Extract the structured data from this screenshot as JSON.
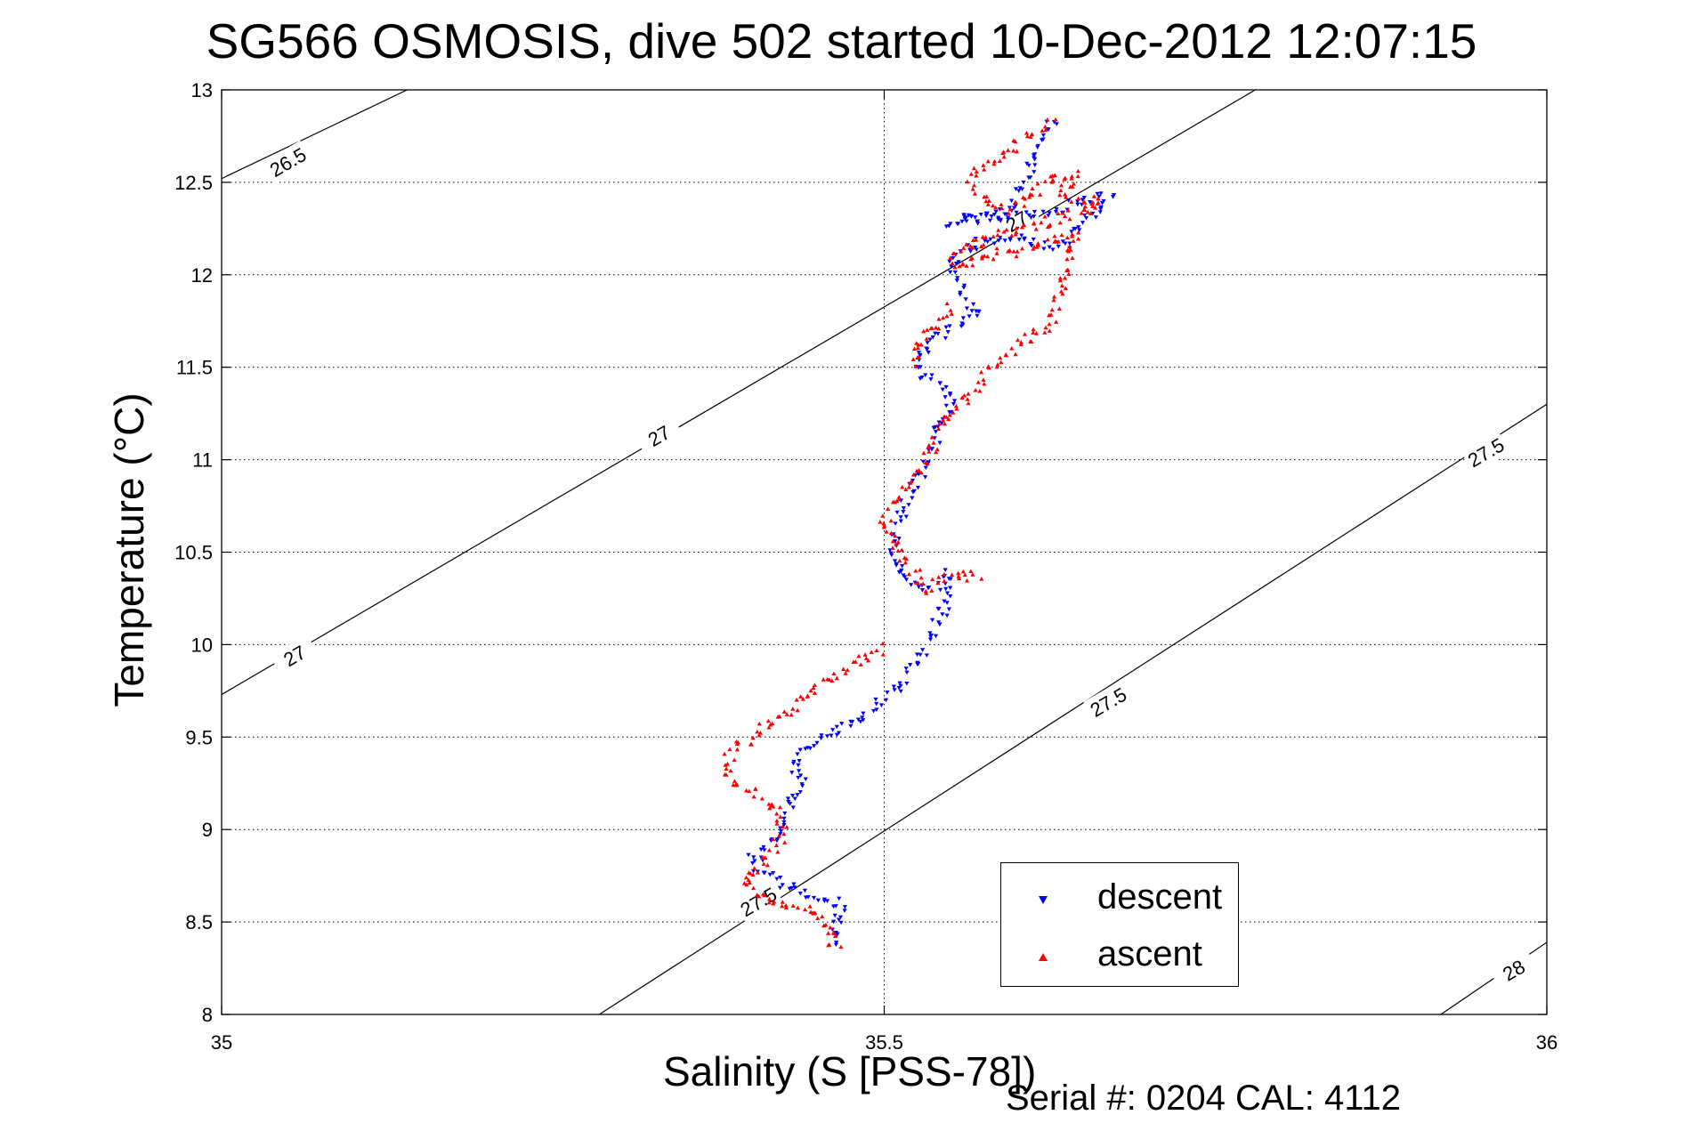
{
  "title": "SG566 OSMOSIS, dive 502 started 10-Dec-2012 12:07:15",
  "footer": "Serial #: 0204  CAL: 4112",
  "chart_data": {
    "type": "scatter",
    "xlabel": "Salinity (S [PSS-78])",
    "ylabel": "Temperature (°C)",
    "xlim": [
      35,
      36
    ],
    "ylim": [
      8,
      13
    ],
    "xticks": [
      "35",
      "35.5",
      "36"
    ],
    "yticks": [
      "8",
      "8.5",
      "9",
      "9.5",
      "10",
      "10.5",
      "11",
      "11.5",
      "12",
      "12.5",
      "13"
    ],
    "grid": "dotted",
    "legend": "bottom-right",
    "colors": {
      "descent": "#0000ff",
      "ascent": "#ff0000"
    },
    "isopycnal_labels": [
      {
        "value": "26.5",
        "x": 35.05,
        "y": 12.61
      },
      {
        "value": "27",
        "x": 35.33,
        "y": 11.13
      },
      {
        "value": "27",
        "x": 35.055,
        "y": 9.94
      },
      {
        "value": "27",
        "x": 35.6,
        "y": 12.29
      },
      {
        "value": "27.5",
        "x": 35.954,
        "y": 11.04
      },
      {
        "value": "27.5",
        "x": 35.669,
        "y": 9.69
      },
      {
        "value": "27.5",
        "x": 35.405,
        "y": 8.61
      },
      {
        "value": "28",
        "x": 35.975,
        "y": 8.24
      }
    ],
    "isopycnals": [
      {
        "value": 26.5,
        "points": [
          [
            35.0,
            12.52
          ],
          [
            35.14,
            13.0
          ]
        ]
      },
      {
        "value": 27.0,
        "points": [
          [
            35.0,
            9.73
          ],
          [
            35.78,
            13.0
          ]
        ]
      },
      {
        "value": 27.5,
        "points": [
          [
            35.285,
            8.0
          ],
          [
            36.0,
            11.3
          ]
        ]
      },
      {
        "value": 28.0,
        "points": [
          [
            35.92,
            8.0
          ],
          [
            36.0,
            8.39
          ]
        ]
      }
    ],
    "series": [
      {
        "name": "descent",
        "color": "#0000ff",
        "path": [
          [
            35.627,
            12.84
          ],
          [
            35.62,
            12.72
          ],
          [
            35.612,
            12.6
          ],
          [
            35.605,
            12.48
          ],
          [
            35.595,
            12.38
          ],
          [
            35.585,
            12.32
          ],
          [
            35.56,
            12.3
          ],
          [
            35.55,
            12.29
          ],
          [
            35.6,
            12.32
          ],
          [
            35.63,
            12.35
          ],
          [
            35.65,
            12.4
          ],
          [
            35.67,
            12.43
          ],
          [
            35.665,
            12.36
          ],
          [
            35.655,
            12.3
          ],
          [
            35.645,
            12.25
          ],
          [
            35.64,
            12.18
          ],
          [
            35.63,
            12.15
          ],
          [
            35.6,
            12.2
          ],
          [
            35.57,
            12.17
          ],
          [
            35.55,
            12.05
          ],
          [
            35.558,
            11.92
          ],
          [
            35.57,
            11.8
          ],
          [
            35.555,
            11.72
          ],
          [
            35.54,
            11.65
          ],
          [
            35.525,
            11.55
          ],
          [
            35.53,
            11.45
          ],
          [
            35.545,
            11.38
          ],
          [
            35.55,
            11.3
          ],
          [
            35.54,
            11.15
          ],
          [
            35.535,
            11.05
          ],
          [
            35.525,
            10.9
          ],
          [
            35.515,
            10.75
          ],
          [
            35.508,
            10.6
          ],
          [
            35.505,
            10.48
          ],
          [
            35.51,
            10.4
          ],
          [
            35.52,
            10.33
          ],
          [
            35.53,
            10.29
          ],
          [
            35.54,
            10.32
          ],
          [
            35.55,
            10.38
          ],
          [
            35.545,
            10.2
          ],
          [
            35.538,
            10.08
          ],
          [
            35.53,
            9.95
          ],
          [
            35.52,
            9.85
          ],
          [
            35.51,
            9.75
          ],
          [
            35.49,
            9.65
          ],
          [
            35.47,
            9.55
          ],
          [
            35.45,
            9.48
          ],
          [
            35.44,
            9.42
          ],
          [
            35.43,
            9.38
          ],
          [
            35.435,
            9.32
          ],
          [
            35.44,
            9.25
          ],
          [
            35.43,
            9.15
          ],
          [
            35.425,
            9.05
          ],
          [
            35.418,
            8.95
          ],
          [
            35.41,
            8.88
          ],
          [
            35.4,
            8.84
          ],
          [
            35.405,
            8.78
          ],
          [
            35.42,
            8.72
          ],
          [
            35.435,
            8.68
          ],
          [
            35.45,
            8.64
          ],
          [
            35.465,
            8.6
          ],
          [
            35.47,
            8.55
          ],
          [
            35.465,
            8.5
          ],
          [
            35.46,
            8.44
          ],
          [
            35.465,
            8.38
          ]
        ]
      },
      {
        "name": "ascent",
        "color": "#ff0000",
        "path": [
          [
            35.626,
            12.83
          ],
          [
            35.615,
            12.76
          ],
          [
            35.6,
            12.7
          ],
          [
            35.59,
            12.64
          ],
          [
            35.575,
            12.58
          ],
          [
            35.565,
            12.52
          ],
          [
            35.57,
            12.45
          ],
          [
            35.58,
            12.38
          ],
          [
            35.59,
            12.34
          ],
          [
            35.6,
            12.38
          ],
          [
            35.615,
            12.45
          ],
          [
            35.63,
            12.52
          ],
          [
            35.645,
            12.55
          ],
          [
            35.64,
            12.5
          ],
          [
            35.635,
            12.43
          ],
          [
            35.65,
            12.39
          ],
          [
            35.66,
            12.4
          ],
          [
            35.665,
            12.38
          ],
          [
            35.655,
            12.35
          ],
          [
            35.63,
            12.3
          ],
          [
            35.6,
            12.23
          ],
          [
            35.58,
            12.2
          ],
          [
            35.56,
            12.15
          ],
          [
            35.55,
            12.07
          ],
          [
            35.56,
            12.05
          ],
          [
            35.575,
            12.1
          ],
          [
            35.59,
            12.12
          ],
          [
            35.61,
            12.13
          ],
          [
            35.63,
            12.18
          ],
          [
            35.645,
            12.22
          ],
          [
            35.625,
            11.72
          ],
          [
            35.605,
            11.64
          ],
          [
            35.59,
            11.55
          ],
          [
            35.575,
            11.45
          ],
          [
            35.565,
            11.35
          ],
          [
            35.55,
            11.25
          ],
          [
            35.54,
            11.15
          ],
          [
            35.535,
            11.05
          ],
          [
            35.525,
            10.95
          ],
          [
            35.515,
            10.85
          ],
          [
            35.505,
            10.75
          ],
          [
            35.5,
            10.68
          ],
          [
            35.505,
            10.58
          ],
          [
            35.51,
            10.5
          ],
          [
            35.52,
            10.43
          ],
          [
            35.525,
            10.36
          ],
          [
            35.53,
            10.3
          ],
          [
            35.54,
            10.34
          ],
          [
            35.56,
            10.37
          ],
          [
            35.575,
            10.38
          ],
          [
            35.55,
            11.82
          ],
          [
            35.54,
            11.74
          ],
          [
            35.53,
            11.68
          ],
          [
            35.525,
            11.6
          ],
          [
            35.52,
            11.5
          ],
          [
            35.5,
            9.98
          ],
          [
            35.485,
            9.92
          ],
          [
            35.47,
            9.86
          ],
          [
            35.455,
            9.8
          ],
          [
            35.44,
            9.72
          ],
          [
            35.43,
            9.65
          ],
          [
            35.415,
            9.58
          ],
          [
            35.4,
            9.5
          ],
          [
            35.385,
            9.42
          ],
          [
            35.38,
            9.35
          ],
          [
            35.385,
            9.25
          ],
          [
            35.4,
            9.2
          ],
          [
            35.415,
            9.14
          ],
          [
            35.42,
            9.06
          ],
          [
            35.425,
            8.98
          ],
          [
            35.415,
            8.88
          ],
          [
            35.405,
            8.8
          ],
          [
            35.395,
            8.72
          ],
          [
            35.4,
            8.66
          ],
          [
            35.42,
            8.6
          ],
          [
            35.44,
            8.56
          ],
          [
            35.455,
            8.52
          ],
          [
            35.46,
            8.45
          ],
          [
            35.46,
            8.38
          ],
          [
            35.465,
            8.34
          ]
        ]
      }
    ]
  }
}
